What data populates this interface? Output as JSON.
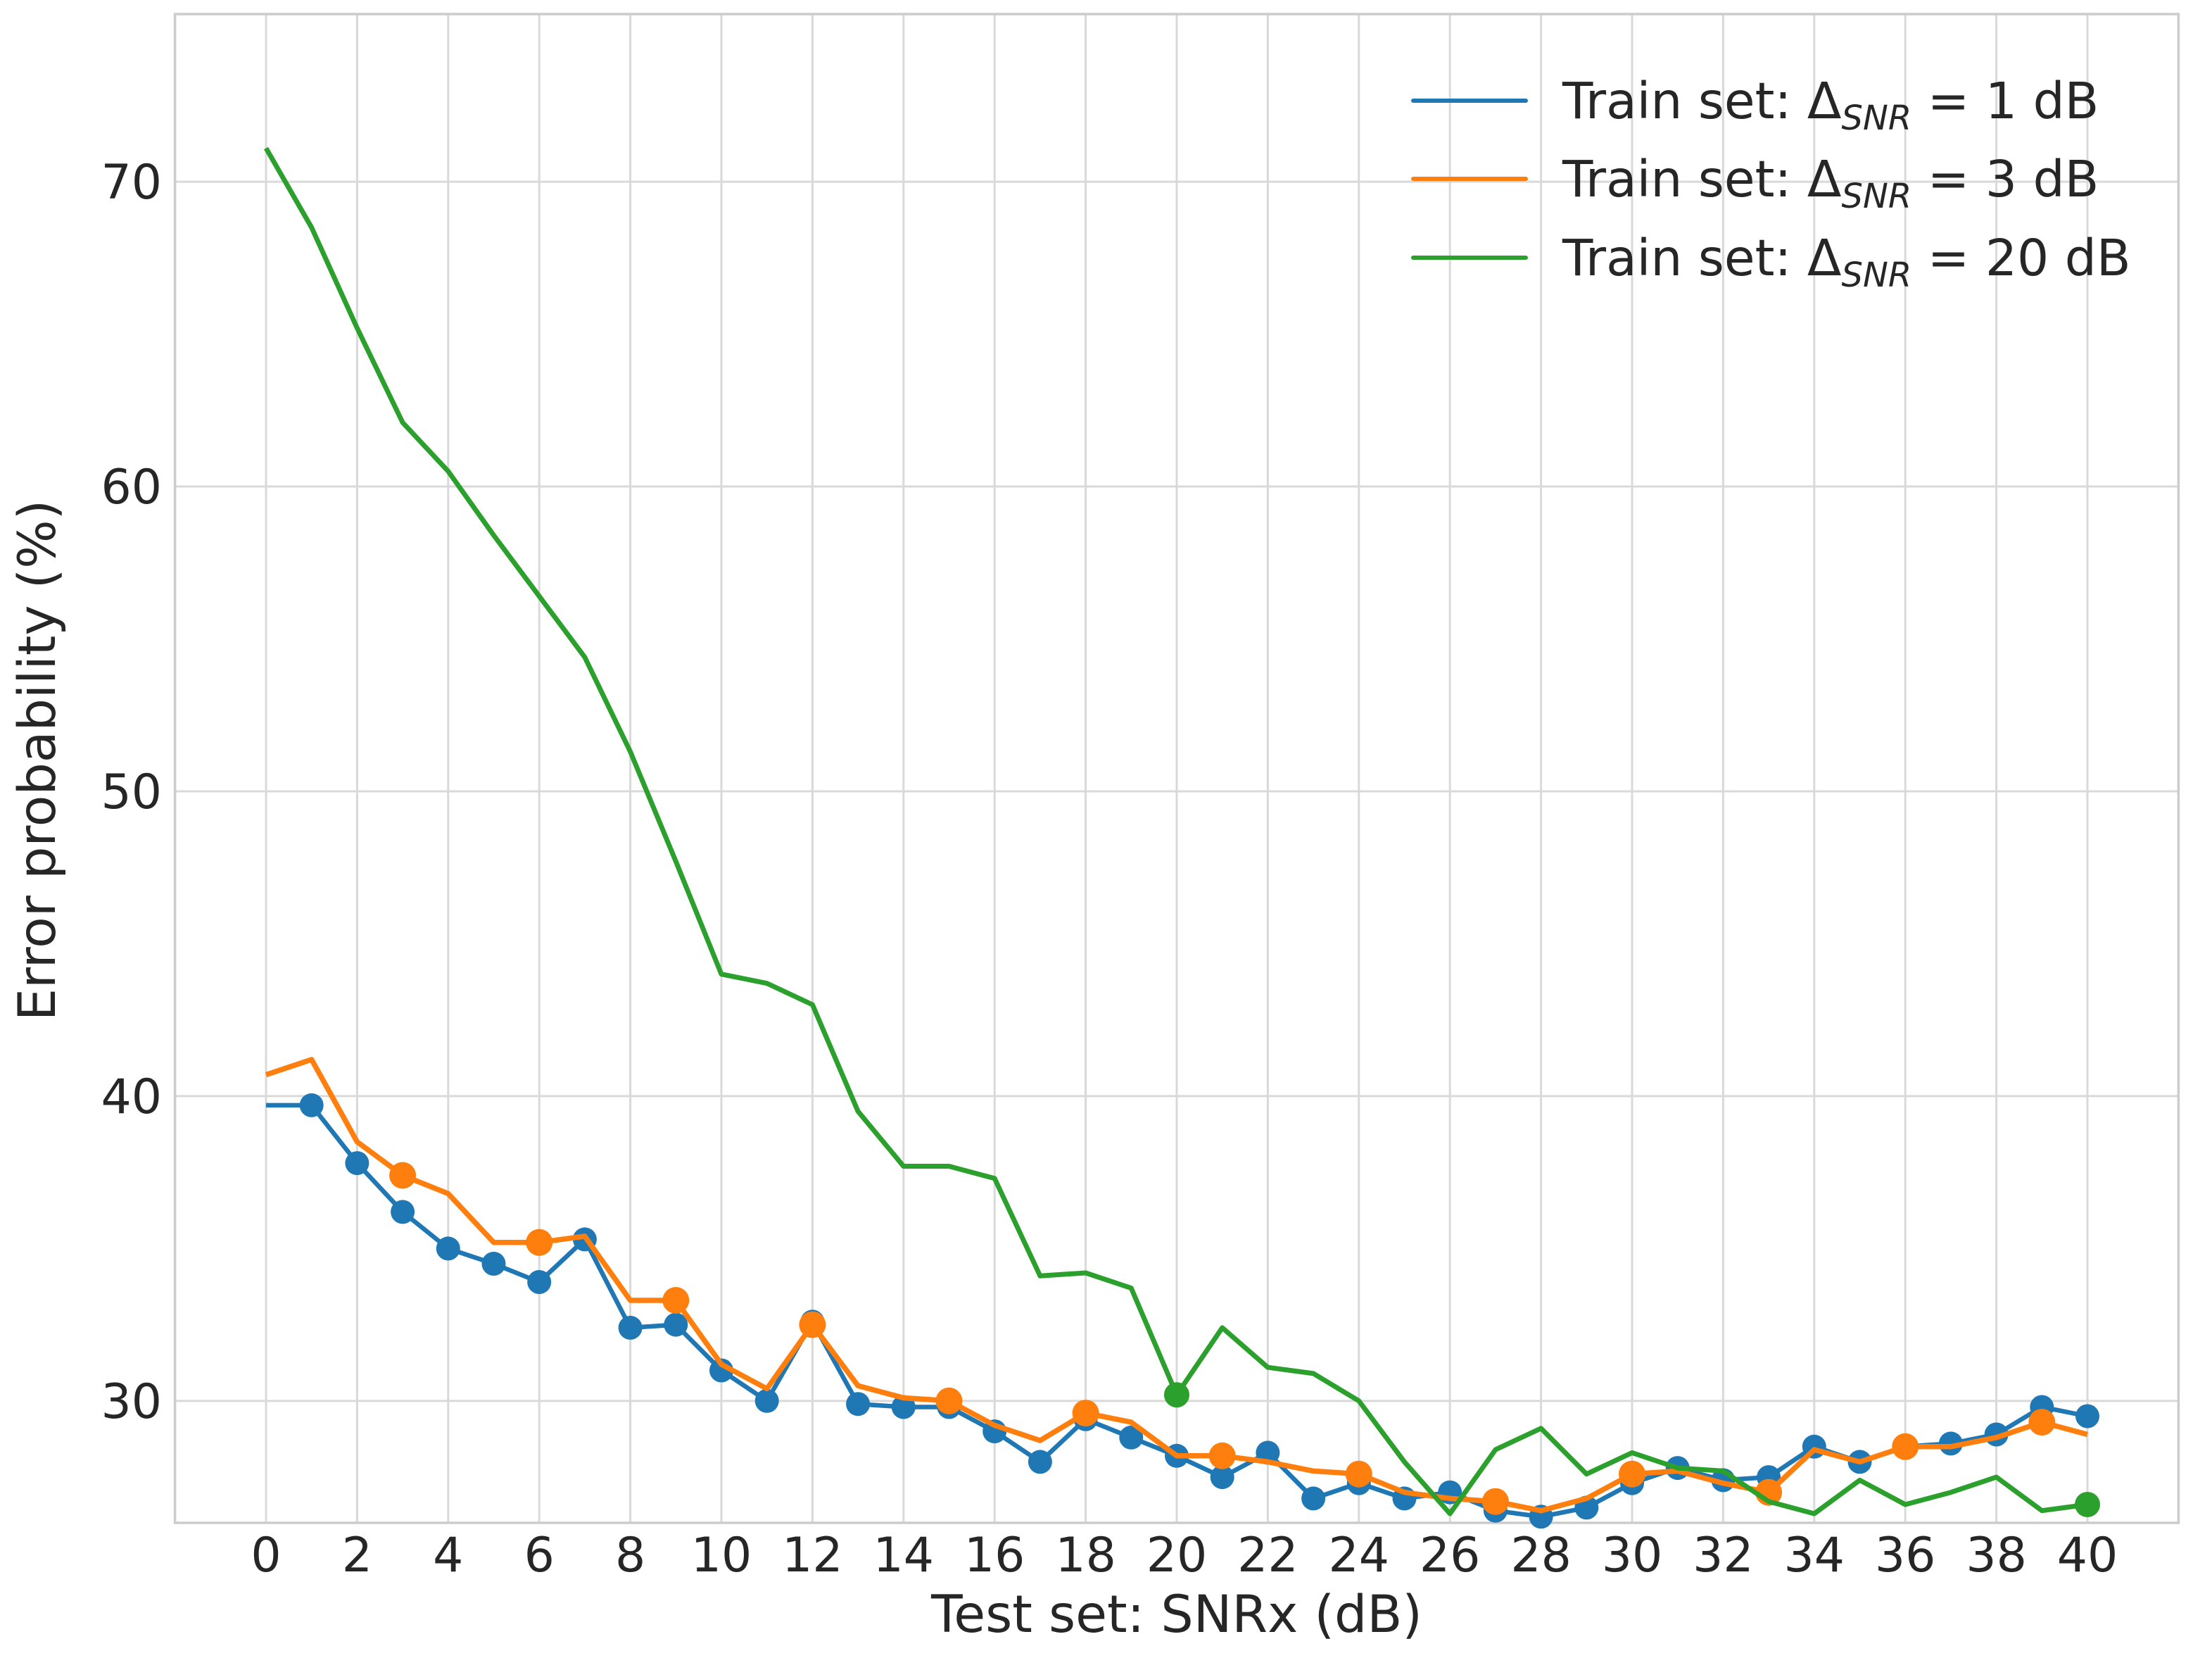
{
  "figure": {
    "background": "#ffffff",
    "text_color": "#262626",
    "grid_color": "#d9d9d9",
    "spine_color": "#cccccc"
  },
  "chart_data": {
    "type": "line",
    "title": "",
    "xlabel": "Test set: SNRx (dB)",
    "ylabel": "Error probability (%)",
    "xlim": [
      -2,
      42
    ],
    "ylim": [
      26,
      75.5
    ],
    "xticks": [
      0,
      2,
      4,
      6,
      8,
      10,
      12,
      14,
      16,
      18,
      20,
      22,
      24,
      26,
      28,
      30,
      32,
      34,
      36,
      38,
      40
    ],
    "yticks": [
      30,
      40,
      50,
      60,
      70
    ],
    "grid": true,
    "legend_position": "upper right",
    "x": [
      0,
      1,
      2,
      3,
      4,
      5,
      6,
      7,
      8,
      9,
      10,
      11,
      12,
      13,
      14,
      15,
      16,
      17,
      18,
      19,
      20,
      21,
      22,
      23,
      24,
      25,
      26,
      27,
      28,
      29,
      30,
      31,
      32,
      33,
      34,
      35,
      36,
      37,
      38,
      39,
      40
    ],
    "series": [
      {
        "id": "delta-1",
        "label_prefix": "Train set: Δ",
        "label_subscript": "SNR",
        "label_suffix": " = 1 dB",
        "color": "#1f77b4",
        "line_width": 6.5,
        "marker": "circle",
        "marker_radius": 17,
        "marker_x": [
          1,
          2,
          3,
          4,
          5,
          6,
          7,
          8,
          9,
          10,
          11,
          12,
          13,
          14,
          15,
          16,
          17,
          18,
          19,
          20,
          21,
          22,
          23,
          24,
          25,
          26,
          27,
          28,
          29,
          30,
          31,
          32,
          33,
          34,
          35,
          36,
          37,
          38,
          39,
          40
        ],
        "values": [
          39.7,
          39.7,
          37.8,
          36.2,
          35.0,
          34.5,
          33.9,
          35.3,
          32.4,
          32.5,
          31.0,
          30.0,
          32.6,
          29.9,
          29.8,
          29.8,
          29.0,
          28.0,
          29.4,
          28.8,
          28.2,
          27.5,
          28.3,
          26.8,
          27.3,
          26.8,
          27.0,
          26.4,
          26.2,
          26.5,
          27.3,
          27.8,
          27.4,
          27.5,
          28.5,
          28.0,
          28.5,
          28.6,
          28.9,
          29.8,
          29.5
        ]
      },
      {
        "id": "delta-3",
        "label_prefix": "Train set: Δ",
        "label_subscript": "SNR",
        "label_suffix": " = 3 dB",
        "color": "#ff7f0e",
        "line_width": 7.5,
        "marker": "circle",
        "marker_radius": 19,
        "marker_x": [
          3,
          6,
          9,
          12,
          15,
          18,
          21,
          24,
          27,
          30,
          33,
          36,
          39
        ],
        "values": [
          40.7,
          41.2,
          38.5,
          37.4,
          36.8,
          35.2,
          35.2,
          35.4,
          33.3,
          33.3,
          31.2,
          30.4,
          32.5,
          30.5,
          30.1,
          30.0,
          29.2,
          28.7,
          29.6,
          29.3,
          28.2,
          28.2,
          28.0,
          27.7,
          27.6,
          27.0,
          26.8,
          26.7,
          26.4,
          26.8,
          27.6,
          27.7,
          27.3,
          27.0,
          28.4,
          28.0,
          28.5,
          28.5,
          28.8,
          29.3,
          28.9
        ]
      },
      {
        "id": "delta-20",
        "label_prefix": "Train set: Δ",
        "label_subscript": "SNR",
        "label_suffix": " = 20 dB",
        "color": "#2ca02c",
        "line_width": 7,
        "marker": "circle",
        "marker_radius": 18,
        "marker_x": [
          20,
          40
        ],
        "values": [
          71.1,
          68.5,
          65.2,
          62.1,
          60.5,
          58.4,
          56.4,
          54.4,
          51.3,
          47.7,
          44.0,
          43.7,
          43.0,
          39.5,
          37.7,
          37.7,
          37.3,
          34.1,
          34.2,
          33.7,
          30.2,
          32.4,
          31.1,
          30.9,
          30.0,
          28.0,
          26.3,
          28.4,
          29.1,
          27.6,
          28.3,
          27.8,
          27.7,
          26.7,
          26.3,
          27.4,
          26.6,
          27.0,
          27.5,
          26.4,
          26.6
        ]
      }
    ]
  }
}
